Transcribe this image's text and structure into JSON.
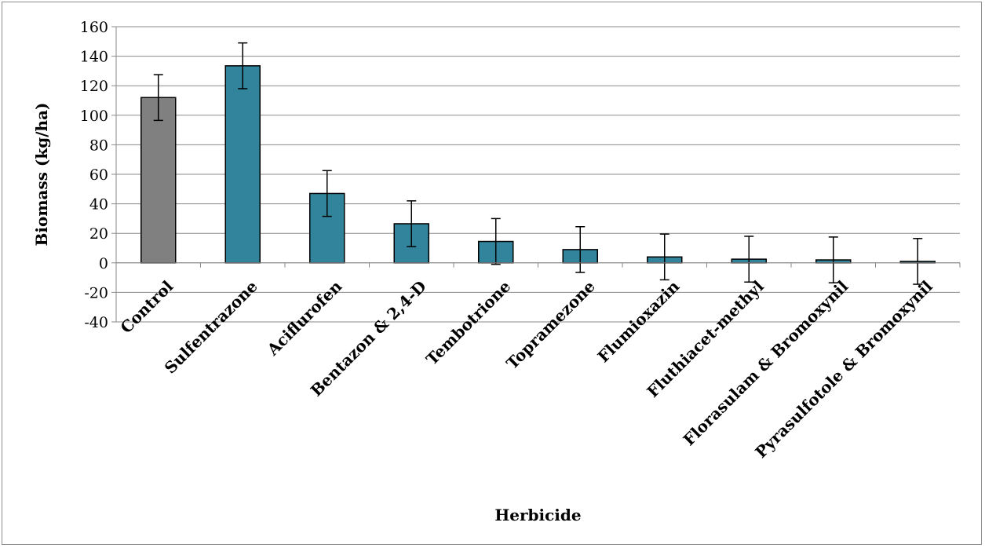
{
  "chart_data": {
    "type": "bar",
    "title": "",
    "xlabel": "Herbicide",
    "ylabel": "Biomass (kg/ha)",
    "ylim": [
      -40,
      160
    ],
    "yticks": [
      -40,
      -20,
      0,
      20,
      40,
      60,
      80,
      100,
      120,
      140,
      160
    ],
    "grid": true,
    "legend": "none",
    "categories": [
      "Control",
      "Sulfentrazone",
      "Aciflurofen",
      "Bentazon & 2,4-D",
      "Tembotrione",
      "Topramezone",
      "Flumioxazin",
      "Fluthiacet-methyl",
      "Florasulam & Bromoxynil",
      "Pyrasulfotole & Bromoxynil"
    ],
    "values": [
      112,
      133.5,
      47,
      26.5,
      14.5,
      9,
      4,
      2.5,
      2,
      1
    ],
    "error": [
      15.5,
      15.5,
      15.5,
      15.5,
      15.5,
      15.5,
      15.5,
      15.5,
      15.5,
      15.5
    ],
    "colors": [
      "#808080",
      "#31849b",
      "#31849b",
      "#31849b",
      "#31849b",
      "#31849b",
      "#31849b",
      "#31849b",
      "#31849b",
      "#31849b"
    ]
  }
}
